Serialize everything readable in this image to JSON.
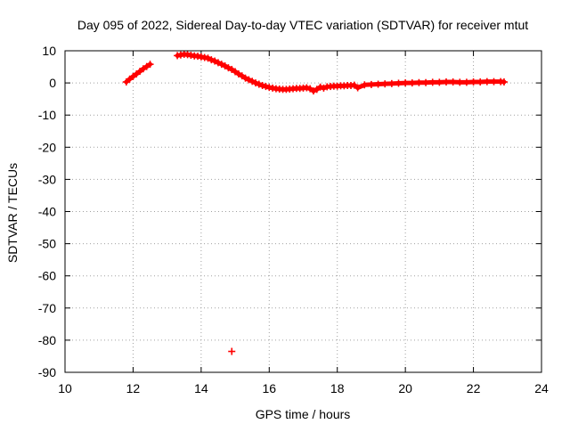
{
  "chart_data": {
    "type": "scatter",
    "title": "Day 095 of 2022, Sidereal Day-to-day VTEC variation (SDTVAR) for receiver mtut",
    "xlabel": "GPS time / hours",
    "ylabel": "SDTVAR / TECUs",
    "xlim": [
      10,
      24
    ],
    "ylim": [
      -90,
      10
    ],
    "xticks": [
      10,
      12,
      14,
      16,
      18,
      20,
      22,
      24
    ],
    "yticks": [
      10,
      0,
      -10,
      -20,
      -30,
      -40,
      -50,
      -60,
      -70,
      -80,
      -90
    ],
    "grid": true,
    "marker_color": "#ff0000",
    "series": [
      {
        "name": "SDTVAR",
        "x": [
          11.8,
          11.9,
          12.0,
          12.1,
          12.2,
          12.3,
          12.4,
          12.5,
          13.3,
          13.4,
          13.5,
          13.6,
          13.7,
          13.8,
          13.9,
          14.0,
          14.1,
          14.2,
          14.3,
          14.4,
          14.5,
          14.6,
          14.7,
          14.8,
          14.9,
          15.0,
          15.1,
          15.2,
          15.3,
          15.4,
          15.5,
          15.6,
          15.7,
          15.8,
          15.9,
          16.0,
          16.1,
          16.2,
          16.3,
          16.4,
          16.5,
          16.6,
          16.7,
          16.8,
          16.9,
          17.0,
          17.1,
          17.2,
          17.3,
          17.4,
          17.5,
          17.6,
          17.7,
          17.8,
          17.9,
          18.0,
          18.1,
          18.2,
          18.3,
          18.4,
          18.5,
          18.6,
          18.8,
          19.0,
          19.2,
          19.4,
          19.6,
          19.8,
          20.0,
          20.2,
          20.4,
          20.6,
          20.8,
          21.0,
          21.2,
          21.4,
          21.6,
          21.8,
          22.0,
          22.2,
          22.4,
          22.6,
          22.8,
          22.9,
          14.9
        ],
        "y": [
          0.3,
          1.2,
          2.0,
          2.8,
          3.6,
          4.4,
          5.1,
          5.8,
          8.5,
          8.7,
          8.9,
          8.8,
          8.6,
          8.4,
          8.3,
          8.1,
          7.9,
          7.7,
          7.2,
          6.8,
          6.3,
          5.8,
          5.3,
          4.7,
          4.2,
          3.5,
          2.8,
          2.2,
          1.5,
          1.0,
          0.5,
          0.0,
          -0.4,
          -0.8,
          -1.1,
          -1.4,
          -1.6,
          -1.8,
          -1.9,
          -2.0,
          -2.0,
          -1.9,
          -1.8,
          -1.7,
          -1.7,
          -1.6,
          -1.5,
          -1.8,
          -2.5,
          -2.0,
          -1.3,
          -1.6,
          -1.2,
          -1.1,
          -1.0,
          -1.0,
          -0.9,
          -0.9,
          -0.8,
          -0.8,
          -0.7,
          -1.5,
          -0.6,
          -0.5,
          -0.4,
          -0.3,
          -0.2,
          -0.1,
          0.0,
          0.0,
          0.1,
          0.1,
          0.2,
          0.2,
          0.3,
          0.3,
          0.2,
          0.2,
          0.3,
          0.3,
          0.4,
          0.4,
          0.4,
          0.3,
          -83.5
        ]
      }
    ]
  }
}
